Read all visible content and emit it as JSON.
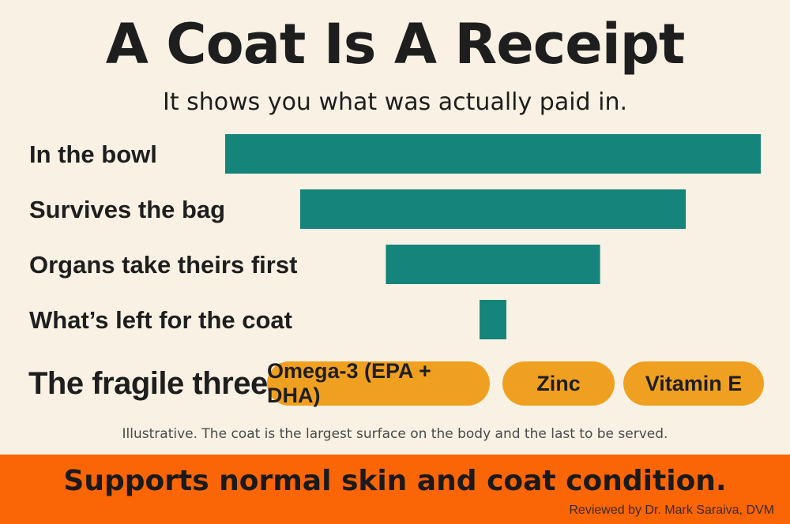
{
  "title": "A Coat Is A Receipt",
  "subtitle": "It shows you what was actually paid in.",
  "chart_data": {
    "type": "bar",
    "orientation": "horizontal",
    "categories": [
      "In the bowl",
      "Survives the bag",
      "Organs take theirs first",
      "What’s left for the coat"
    ],
    "values": [
      100,
      72,
      40,
      5
    ],
    "xlim": [
      0,
      100
    ],
    "grid": false,
    "bar_color": "#15847a"
  },
  "fragile": {
    "label": "The fragile three",
    "items": [
      "Omega-3 (EPA + DHA)",
      "Zinc",
      "Vitamin E"
    ],
    "chip_color": "#f0a020"
  },
  "note": "Illustrative. The coat is the largest surface on the body and the last to be served.",
  "footer": {
    "claim": "Supports normal skin and coat condition.",
    "reviewer": "Reviewed by Dr. Mark Saraiva, DVM",
    "color": "#fa6506"
  }
}
